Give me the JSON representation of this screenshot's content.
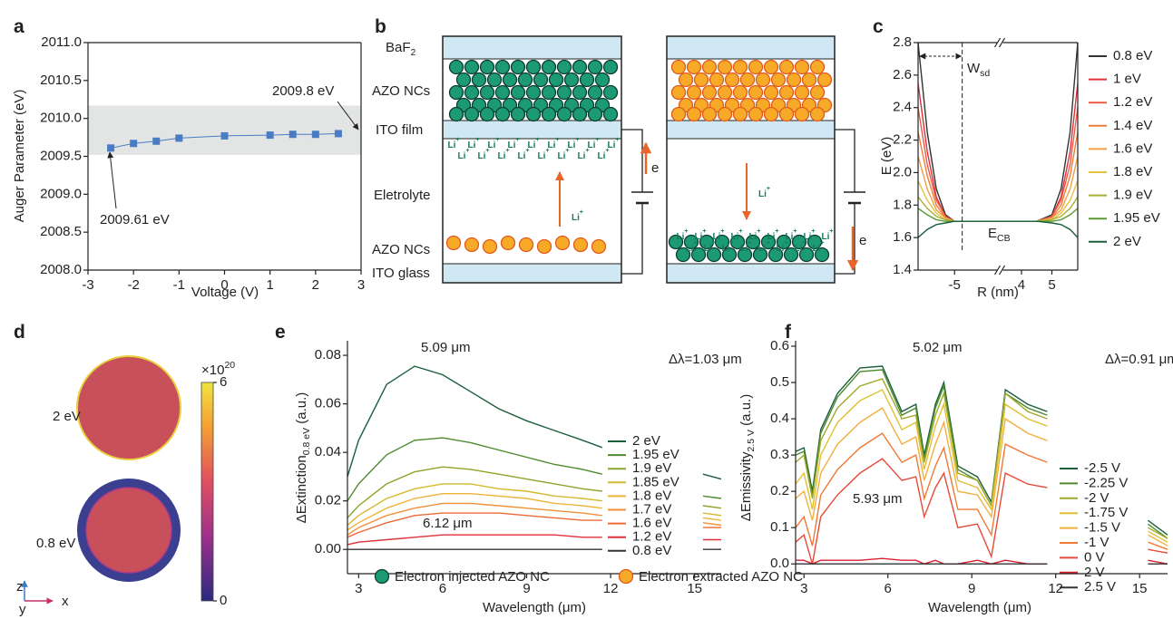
{
  "panel_labels": [
    "a",
    "b",
    "c",
    "d",
    "e",
    "f"
  ],
  "chart_data": [
    {
      "type": "line",
      "marker": "square",
      "x_label": "Voltage (V)",
      "y_label": "Auger Parameter (eV)",
      "x": [
        -2.5,
        -2,
        -1.5,
        -1,
        0,
        1,
        1.5,
        2,
        2.5
      ],
      "values": [
        2009.61,
        2009.67,
        2009.7,
        2009.74,
        2009.77,
        2009.78,
        2009.79,
        2009.79,
        2009.8
      ],
      "color": "#4a7cc4",
      "band": [
        2009.52,
        2010.17
      ],
      "xlim": [
        -3,
        3
      ],
      "xticks": [
        -3,
        -2,
        -1,
        0,
        1,
        2,
        3
      ],
      "ylim": [
        2008,
        2011
      ],
      "yticks": [
        {
          "value": 2008,
          "label": "2008.0"
        },
        2008.5,
        {
          "value": 2009,
          "label": "2009.0"
        },
        2009.5,
        {
          "value": 2010,
          "label": "2010.0"
        },
        2010.5,
        {
          "value": 2011,
          "label": "2011.0"
        }
      ],
      "annotations": [
        {
          "text": "2009.8 eV"
        },
        {
          "text": "2009.61 eV"
        }
      ]
    },
    {
      "type": "line",
      "x_label": "R (nm)",
      "y_label": "E (eV)",
      "x": [
        -6.2,
        -5.9,
        -5.6,
        -5.3,
        -5,
        -4.5,
        -3.5,
        3.3,
        4,
        4.5,
        5,
        5.3,
        5.6,
        5.85
      ],
      "x_break": [
        -3.5,
        3.3
      ],
      "marker_x": -4.75,
      "xlim": [
        -6.2,
        5.85
      ],
      "xticks": [
        -5,
        4,
        5
      ],
      "ylim": [
        1.4,
        2.8
      ],
      "yticks": [
        1.4,
        1.6,
        1.8,
        {
          "value": 2,
          "label": "2.0"
        },
        2.2,
        2.4,
        2.6,
        2.8
      ],
      "series": [
        {
          "name": "0.8 eV",
          "color": "#333333",
          "values": [
            2.8,
            2.25,
            1.9,
            1.74,
            1.7,
            1.7,
            1.7,
            1.7,
            1.7,
            1.7,
            1.74,
            1.9,
            2.25,
            2.8
          ]
        },
        {
          "name": "1 eV",
          "color": "#e0303a",
          "values": [
            2.55,
            2.13,
            1.85,
            1.73,
            1.7,
            1.7,
            1.7,
            1.7,
            1.7,
            1.7,
            1.73,
            1.85,
            2.13,
            2.55
          ]
        },
        {
          "name": "1.2 eV",
          "color": "#ec5a45",
          "values": [
            2.4,
            2.05,
            1.83,
            1.73,
            1.7,
            1.7,
            1.7,
            1.7,
            1.7,
            1.7,
            1.73,
            1.83,
            2.05,
            2.4
          ]
        },
        {
          "name": "1.4 eV",
          "color": "#ef7d3a",
          "values": [
            2.25,
            1.98,
            1.8,
            1.72,
            1.7,
            1.7,
            1.7,
            1.7,
            1.7,
            1.7,
            1.72,
            1.8,
            1.98,
            2.25
          ]
        },
        {
          "name": "1.6 eV",
          "color": "#f0a040",
          "values": [
            2.1,
            1.9,
            1.77,
            1.72,
            1.7,
            1.7,
            1.7,
            1.7,
            1.7,
            1.7,
            1.72,
            1.77,
            1.9,
            2.1
          ]
        },
        {
          "name": "1.8 eV",
          "color": "#e8c040",
          "values": [
            1.95,
            1.83,
            1.75,
            1.71,
            1.7,
            1.7,
            1.7,
            1.7,
            1.7,
            1.7,
            1.71,
            1.75,
            1.83,
            1.95
          ]
        },
        {
          "name": "1.9 eV",
          "color": "#a8b030",
          "values": [
            1.85,
            1.78,
            1.73,
            1.71,
            1.7,
            1.7,
            1.7,
            1.7,
            1.7,
            1.7,
            1.71,
            1.73,
            1.78,
            1.85
          ]
        },
        {
          "name": "1.95 eV",
          "color": "#5c9a35",
          "values": [
            1.78,
            1.74,
            1.71,
            1.7,
            1.7,
            1.7,
            1.7,
            1.7,
            1.7,
            1.7,
            1.7,
            1.71,
            1.74,
            1.78
          ]
        },
        {
          "name": "2 eV",
          "color": "#1a5e3a",
          "values": [
            1.6,
            1.65,
            1.68,
            1.69,
            1.7,
            1.7,
            1.7,
            1.7,
            1.7,
            1.7,
            1.69,
            1.68,
            1.65,
            1.6
          ]
        }
      ],
      "annotations": [
        {
          "text": "W",
          "sub": "sd"
        },
        {
          "text": "E",
          "sub": "CB"
        }
      ]
    },
    {
      "type": "line",
      "x_label": "Wavelength (μm)",
      "y_label": {
        "text": "ΔExtinction",
        "sub": "0.8 eV",
        "suffix": " (a.u.)"
      },
      "x": [
        2.6,
        3,
        4,
        5,
        6,
        7,
        8,
        9,
        10,
        11,
        11.7,
        13.5,
        15.3,
        15.95
      ],
      "xlim": [
        2.6,
        15.95
      ],
      "xticks": [
        3,
        6,
        9,
        12,
        15
      ],
      "ylim": [
        -0.01,
        0.086
      ],
      "yticks": [
        {
          "value": 0,
          "label": "0.00"
        },
        {
          "value": 0.02,
          "label": "0.02"
        },
        {
          "value": 0.04,
          "label": "0.04"
        },
        {
          "value": 0.06,
          "label": "0.06"
        },
        {
          "value": 0.08,
          "label": "0.08"
        }
      ],
      "series": [
        {
          "name": "2 eV",
          "color": "#1a5e3a",
          "values": [
            0.03,
            0.045,
            0.068,
            0.0755,
            0.072,
            0.065,
            0.058,
            0.053,
            0.049,
            0.045,
            0.042,
            null,
            0.031,
            0.029
          ]
        },
        {
          "name": "1.95 eV",
          "color": "#4c8a2d",
          "values": [
            0.02,
            0.027,
            0.039,
            0.045,
            0.046,
            0.044,
            0.041,
            0.038,
            0.035,
            0.033,
            0.031,
            null,
            0.022,
            0.021
          ]
        },
        {
          "name": "1.9 eV",
          "color": "#8aa62a",
          "values": [
            0.013,
            0.018,
            0.027,
            0.032,
            0.034,
            0.033,
            0.031,
            0.029,
            0.027,
            0.025,
            0.024,
            null,
            0.018,
            0.017
          ]
        },
        {
          "name": "1.85 eV",
          "color": "#d4b82e",
          "values": [
            0.01,
            0.014,
            0.021,
            0.025,
            0.027,
            0.027,
            0.025,
            0.024,
            0.022,
            0.021,
            0.02,
            null,
            0.015,
            0.014
          ]
        },
        {
          "name": "1.8 eV",
          "color": "#eeb43a",
          "values": [
            0.008,
            0.011,
            0.017,
            0.021,
            0.023,
            0.023,
            0.022,
            0.021,
            0.019,
            0.018,
            0.017,
            null,
            0.013,
            0.012
          ]
        },
        {
          "name": "1.7 eV",
          "color": "#f0913a",
          "values": [
            0.006,
            0.009,
            0.014,
            0.017,
            0.019,
            0.019,
            0.018,
            0.017,
            0.016,
            0.015,
            0.014,
            null,
            0.011,
            0.01
          ]
        },
        {
          "name": "1.6 eV",
          "color": "#ec6a3a",
          "values": [
            0.005,
            0.007,
            0.011,
            0.014,
            0.015,
            0.015,
            0.015,
            0.014,
            0.013,
            0.012,
            0.012,
            null,
            0.009,
            0.009
          ]
        },
        {
          "name": "1.2 eV",
          "color": "#e0303a",
          "values": [
            0.002,
            0.003,
            0.004,
            0.005,
            0.006,
            0.006,
            0.006,
            0.006,
            0.006,
            0.005,
            0.005,
            null,
            0.004,
            0.004
          ]
        },
        {
          "name": "0.8 eV",
          "color": "#333333",
          "values": [
            0,
            0,
            0,
            0,
            0,
            0,
            0,
            0,
            0,
            0,
            0,
            null,
            0,
            0
          ]
        }
      ],
      "annotations": [
        {
          "text": "5.09 μm",
          "color": "#1a5e3a"
        },
        {
          "text": "6.12 μm",
          "color": "#e0303a"
        },
        {
          "text": "Δλ=1.03 μm"
        }
      ]
    },
    {
      "type": "line",
      "x_label": "Wavelength (μm)",
      "y_label": {
        "text": "ΔEmissivity",
        "sub": "2.5 V",
        "suffix": " (a.u.)"
      },
      "x": [
        2.7,
        3,
        3.3,
        3.6,
        4.2,
        5,
        5.8,
        6.5,
        7,
        7.3,
        7.7,
        8,
        8.5,
        9.2,
        9.7,
        10.2,
        11,
        11.7,
        13.5,
        15.3,
        16
      ],
      "xlim": [
        2.7,
        16
      ],
      "xticks": [
        3,
        6,
        9,
        12,
        15
      ],
      "ylim": [
        -0.027,
        0.615
      ],
      "yticks": [
        {
          "value": 0,
          "label": "0.0"
        },
        0.1,
        0.2,
        0.3,
        0.4,
        0.5,
        0.6
      ],
      "series": [
        {
          "name": "-2.5 V",
          "color": "#1a5e3a",
          "values": [
            0.31,
            0.32,
            0.2,
            0.37,
            0.47,
            0.54,
            0.545,
            0.42,
            0.44,
            0.3,
            0.44,
            0.5,
            0.27,
            0.24,
            0.17,
            0.48,
            0.44,
            0.42,
            null,
            0.12,
            0.08
          ]
        },
        {
          "name": "-2.25 V",
          "color": "#4c8a2d",
          "values": [
            0.3,
            0.31,
            0.19,
            0.36,
            0.46,
            0.53,
            0.535,
            0.41,
            0.43,
            0.29,
            0.43,
            0.49,
            0.26,
            0.23,
            0.16,
            0.47,
            0.43,
            0.41,
            null,
            0.11,
            0.07
          ]
        },
        {
          "name": "-2 V",
          "color": "#a0a82a",
          "values": [
            0.28,
            0.3,
            0.18,
            0.34,
            0.43,
            0.49,
            0.51,
            0.4,
            0.41,
            0.28,
            0.41,
            0.47,
            0.25,
            0.23,
            0.16,
            0.47,
            0.42,
            0.4,
            null,
            0.1,
            0.07
          ]
        },
        {
          "name": "-1.75 V",
          "color": "#e0c030",
          "values": [
            0.22,
            0.25,
            0.15,
            0.3,
            0.39,
            0.45,
            0.48,
            0.37,
            0.39,
            0.26,
            0.38,
            0.44,
            0.23,
            0.21,
            0.15,
            0.44,
            0.4,
            0.38,
            null,
            0.09,
            0.06
          ]
        },
        {
          "name": "-1.5 V",
          "color": "#f0b040",
          "values": [
            0.18,
            0.2,
            0.12,
            0.25,
            0.33,
            0.39,
            0.43,
            0.33,
            0.35,
            0.23,
            0.33,
            0.39,
            0.2,
            0.19,
            0.13,
            0.4,
            0.36,
            0.34,
            null,
            0.08,
            0.05
          ]
        },
        {
          "name": "-1 V",
          "color": "#ee7a35",
          "values": [
            0.1,
            0.13,
            0.05,
            0.19,
            0.26,
            0.32,
            0.36,
            0.28,
            0.3,
            0.18,
            0.27,
            0.32,
            0.15,
            0.15,
            0.08,
            0.33,
            0.3,
            0.28,
            null,
            0.06,
            0.04
          ]
        },
        {
          "name": "0 V",
          "color": "#e84a3a",
          "values": [
            0.06,
            0.08,
            0,
            0.13,
            0.19,
            0.25,
            0.29,
            0.23,
            0.24,
            0.13,
            0.21,
            0.25,
            0.1,
            0.11,
            0.02,
            0.25,
            0.22,
            0.21,
            null,
            0.04,
            0.03
          ]
        },
        {
          "name": "2 V",
          "color": "#d82030",
          "values": [
            0.01,
            0.01,
            0,
            0.01,
            0.01,
            0.01,
            0.015,
            0.01,
            0.01,
            0,
            0.01,
            0,
            0,
            0.01,
            0,
            0.01,
            0,
            0,
            null,
            0.01,
            0
          ]
        },
        {
          "name": "2.5 V",
          "color": "#333333",
          "values": [
            0,
            0,
            0,
            0,
            0,
            0,
            0,
            0,
            0,
            0,
            0,
            0,
            0,
            0,
            0,
            0,
            0,
            0,
            null,
            0,
            0
          ]
        }
      ],
      "annotations": [
        {
          "text": "5.02 μm",
          "color": "#1a5e3a"
        },
        {
          "text": "5.93 μm",
          "color": "#d82030"
        },
        {
          "text": "Δλ=0.91 μm"
        }
      ]
    }
  ],
  "diagram_b": {
    "baf": "BaF",
    "baf_sub": "2",
    "azo_top": "AZO NCs",
    "ito_film": "ITO film",
    "electrolyte": "Eletrolyte",
    "azo_bottom": "AZO NCs",
    "ito_glass": "ITO glass",
    "ion": "Li",
    "ion_charge": "+",
    "electron": "e",
    "legend": [
      "Electron injected AZO NC",
      "Electron extracted AZO NC"
    ]
  },
  "figure_d": {
    "labels": [
      "2 eV",
      "0.8 eV"
    ],
    "colorbar": {
      "multiplier": "×10",
      "exponent": "20",
      "lim": [
        0,
        6
      ],
      "ticks": [
        0,
        6
      ]
    },
    "axes": [
      "z",
      "y",
      "x"
    ]
  }
}
